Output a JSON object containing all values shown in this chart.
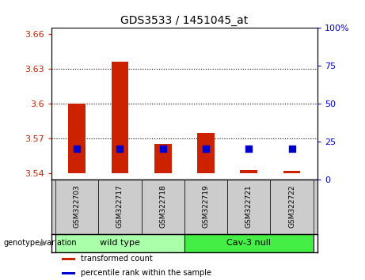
{
  "title": "GDS3533 / 1451045_at",
  "samples": [
    "GSM322703",
    "GSM322717",
    "GSM322718",
    "GSM322719",
    "GSM322721",
    "GSM322722"
  ],
  "transformed_count": [
    3.6,
    3.636,
    3.565,
    3.575,
    3.543,
    3.542
  ],
  "percentile_rank": [
    20,
    20,
    20,
    20,
    20,
    20
  ],
  "baseline": 3.54,
  "ylim_left": [
    3.535,
    3.665
  ],
  "ylim_right": [
    0,
    100
  ],
  "yticks_left": [
    3.54,
    3.57,
    3.6,
    3.63,
    3.66
  ],
  "yticks_right": [
    0,
    25,
    50,
    75,
    100
  ],
  "ytick_labels_right": [
    "0",
    "25",
    "50",
    "75",
    "100%"
  ],
  "grid_yticks": [
    3.57,
    3.6,
    3.63
  ],
  "bar_color": "#cc2200",
  "dot_color": "#0000cc",
  "groups": [
    {
      "label": "wild type",
      "indices": [
        0,
        1,
        2
      ],
      "color": "#aaffaa"
    },
    {
      "label": "Cav-3 null",
      "indices": [
        3,
        4,
        5
      ],
      "color": "#44ee44"
    }
  ],
  "genotype_label": "genotype/variation",
  "legend_items": [
    {
      "label": "transformed count",
      "color": "#cc2200"
    },
    {
      "label": "percentile rank within the sample",
      "color": "#0000cc"
    }
  ],
  "background_color": "#ffffff",
  "xlabel_color": "#cc2200",
  "bar_width": 0.4,
  "dot_size": 35
}
